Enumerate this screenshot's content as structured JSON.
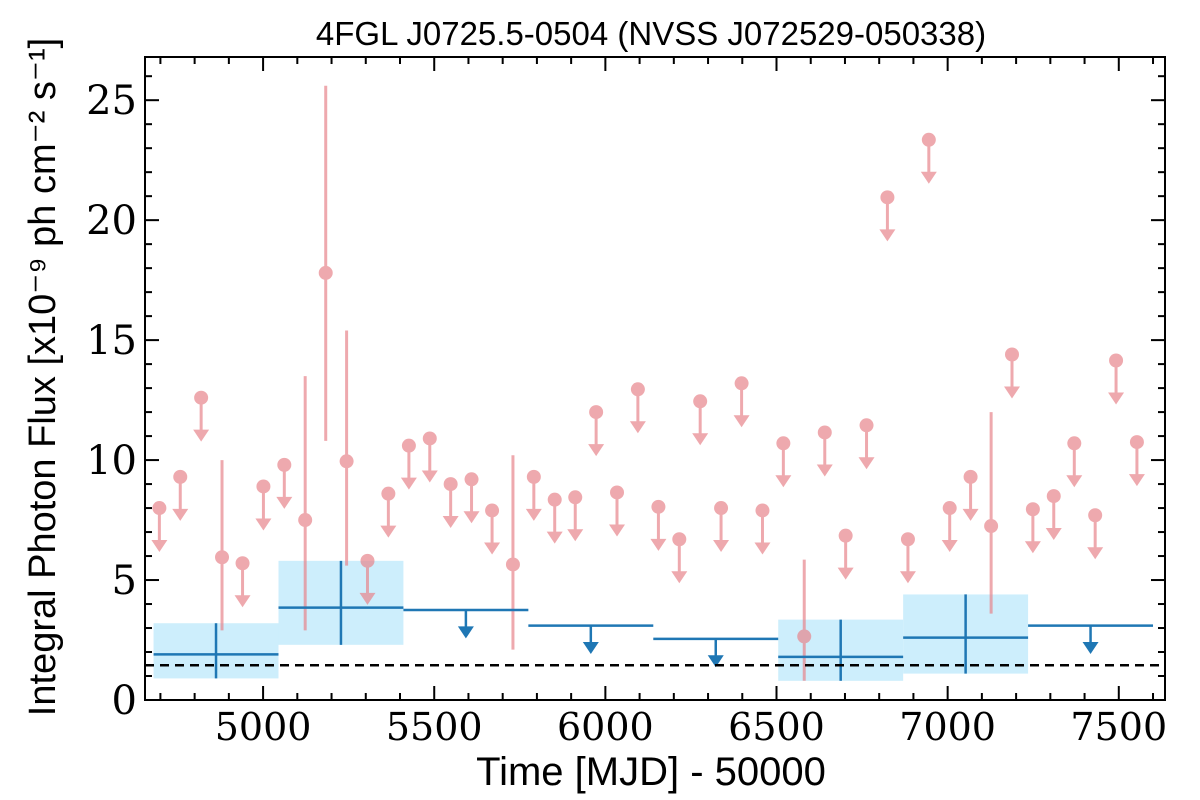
{
  "chart_data": {
    "type": "scatter",
    "title": "4FGL J0725.5-0504 (NVSS J072529-050338)",
    "xlabel": "Time [MJD] - 50000",
    "ylabel": "Integral Photon Flux [x10⁻⁹ ph cm⁻² s⁻¹]",
    "xlim": [
      4655,
      7635
    ],
    "ylim": [
      0,
      26.8
    ],
    "x_ticks": [
      5000,
      5500,
      6000,
      6500,
      7000,
      7500
    ],
    "x_tick_labels": [
      "5000",
      "5500",
      "6000",
      "6500",
      "7000",
      "7500"
    ],
    "y_ticks": [
      0,
      5,
      10,
      15,
      20,
      25
    ],
    "y_tick_labels": [
      "0",
      "5",
      "10",
      "15",
      "20",
      "25"
    ],
    "grid": false,
    "reference_level": 1.45,
    "colors": {
      "short_bins": "#e8868c",
      "long_bins": "#1f77b4",
      "long_bin_band": "#cdeefc",
      "reference_line": "#000000"
    },
    "long_bins": [
      {
        "x_start": 4680,
        "x_end": 5045,
        "y": 1.9,
        "y_low": 0.9,
        "y_high": 3.2,
        "upper_limit": false
      },
      {
        "x_start": 5045,
        "x_end": 5410,
        "y": 3.85,
        "y_low": 2.3,
        "y_high": 5.8,
        "upper_limit": false
      },
      {
        "x_start": 5410,
        "x_end": 5775,
        "y": 3.75,
        "upper_limit": true
      },
      {
        "x_start": 5775,
        "x_end": 6140,
        "y": 3.1,
        "upper_limit": true
      },
      {
        "x_start": 6140,
        "x_end": 6505,
        "y": 2.55,
        "upper_limit": true
      },
      {
        "x_start": 6505,
        "x_end": 6870,
        "y": 1.8,
        "y_low": 0.8,
        "y_high": 3.35,
        "upper_limit": false
      },
      {
        "x_start": 6870,
        "x_end": 7235,
        "y": 2.6,
        "y_low": 1.1,
        "y_high": 4.4,
        "upper_limit": false
      },
      {
        "x_start": 7235,
        "x_end": 7600,
        "y": 3.1,
        "upper_limit": true
      }
    ],
    "short_bins": [
      {
        "x": 4697,
        "y": 8.0,
        "upper_limit": true
      },
      {
        "x": 4758,
        "y": 9.3,
        "upper_limit": true
      },
      {
        "x": 4819,
        "y": 12.6,
        "upper_limit": true
      },
      {
        "x": 4880,
        "y": 5.95,
        "y_low": 2.9,
        "y_high": 10.0,
        "upper_limit": false
      },
      {
        "x": 4940,
        "y": 5.7,
        "upper_limit": true
      },
      {
        "x": 5001,
        "y": 8.9,
        "upper_limit": true
      },
      {
        "x": 5062,
        "y": 9.8,
        "upper_limit": true
      },
      {
        "x": 5123,
        "y": 7.5,
        "y_low": 2.9,
        "y_high": 13.5,
        "upper_limit": false
      },
      {
        "x": 5183,
        "y": 17.8,
        "y_low": 10.8,
        "y_high": 25.6,
        "upper_limit": false
      },
      {
        "x": 5244,
        "y": 9.95,
        "y_low": 5.6,
        "y_high": 15.4,
        "upper_limit": false
      },
      {
        "x": 5305,
        "y": 5.8,
        "upper_limit": true
      },
      {
        "x": 5366,
        "y": 8.6,
        "upper_limit": true
      },
      {
        "x": 5426,
        "y": 10.6,
        "upper_limit": true
      },
      {
        "x": 5487,
        "y": 10.9,
        "upper_limit": true
      },
      {
        "x": 5548,
        "y": 9.0,
        "upper_limit": true
      },
      {
        "x": 5609,
        "y": 9.2,
        "upper_limit": true
      },
      {
        "x": 5669,
        "y": 7.9,
        "upper_limit": true
      },
      {
        "x": 5730,
        "y": 5.65,
        "y_low": 2.1,
        "y_high": 10.2,
        "upper_limit": false
      },
      {
        "x": 5791,
        "y": 9.3,
        "upper_limit": true
      },
      {
        "x": 5852,
        "y": 8.35,
        "upper_limit": true
      },
      {
        "x": 5912,
        "y": 8.45,
        "upper_limit": true
      },
      {
        "x": 5973,
        "y": 12.0,
        "upper_limit": true
      },
      {
        "x": 6034,
        "y": 8.65,
        "upper_limit": true
      },
      {
        "x": 6095,
        "y": 12.95,
        "upper_limit": true
      },
      {
        "x": 6155,
        "y": 8.05,
        "upper_limit": true
      },
      {
        "x": 6216,
        "y": 6.7,
        "upper_limit": true
      },
      {
        "x": 6277,
        "y": 12.45,
        "upper_limit": true
      },
      {
        "x": 6338,
        "y": 8.0,
        "upper_limit": true
      },
      {
        "x": 6398,
        "y": 13.2,
        "upper_limit": true
      },
      {
        "x": 6459,
        "y": 7.9,
        "upper_limit": true
      },
      {
        "x": 6520,
        "y": 10.7,
        "upper_limit": true
      },
      {
        "x": 6581,
        "y": 2.65,
        "y_low": 0.8,
        "y_high": 5.85,
        "upper_limit": false
      },
      {
        "x": 6641,
        "y": 11.15,
        "upper_limit": true
      },
      {
        "x": 6702,
        "y": 6.85,
        "upper_limit": true
      },
      {
        "x": 6763,
        "y": 11.45,
        "upper_limit": true
      },
      {
        "x": 6824,
        "y": 20.95,
        "upper_limit": true
      },
      {
        "x": 6884,
        "y": 6.7,
        "upper_limit": true
      },
      {
        "x": 6945,
        "y": 23.35,
        "upper_limit": true
      },
      {
        "x": 7006,
        "y": 8.0,
        "upper_limit": true
      },
      {
        "x": 7067,
        "y": 9.3,
        "upper_limit": true
      },
      {
        "x": 7127,
        "y": 7.25,
        "y_low": 3.6,
        "y_high": 12.0,
        "upper_limit": false
      },
      {
        "x": 7188,
        "y": 14.4,
        "upper_limit": true
      },
      {
        "x": 7249,
        "y": 7.95,
        "upper_limit": true
      },
      {
        "x": 7310,
        "y": 8.5,
        "upper_limit": true
      },
      {
        "x": 7370,
        "y": 10.7,
        "upper_limit": true
      },
      {
        "x": 7431,
        "y": 7.7,
        "upper_limit": true
      },
      {
        "x": 7492,
        "y": 14.15,
        "upper_limit": true
      },
      {
        "x": 7553,
        "y": 10.75,
        "upper_limit": true
      }
    ]
  }
}
